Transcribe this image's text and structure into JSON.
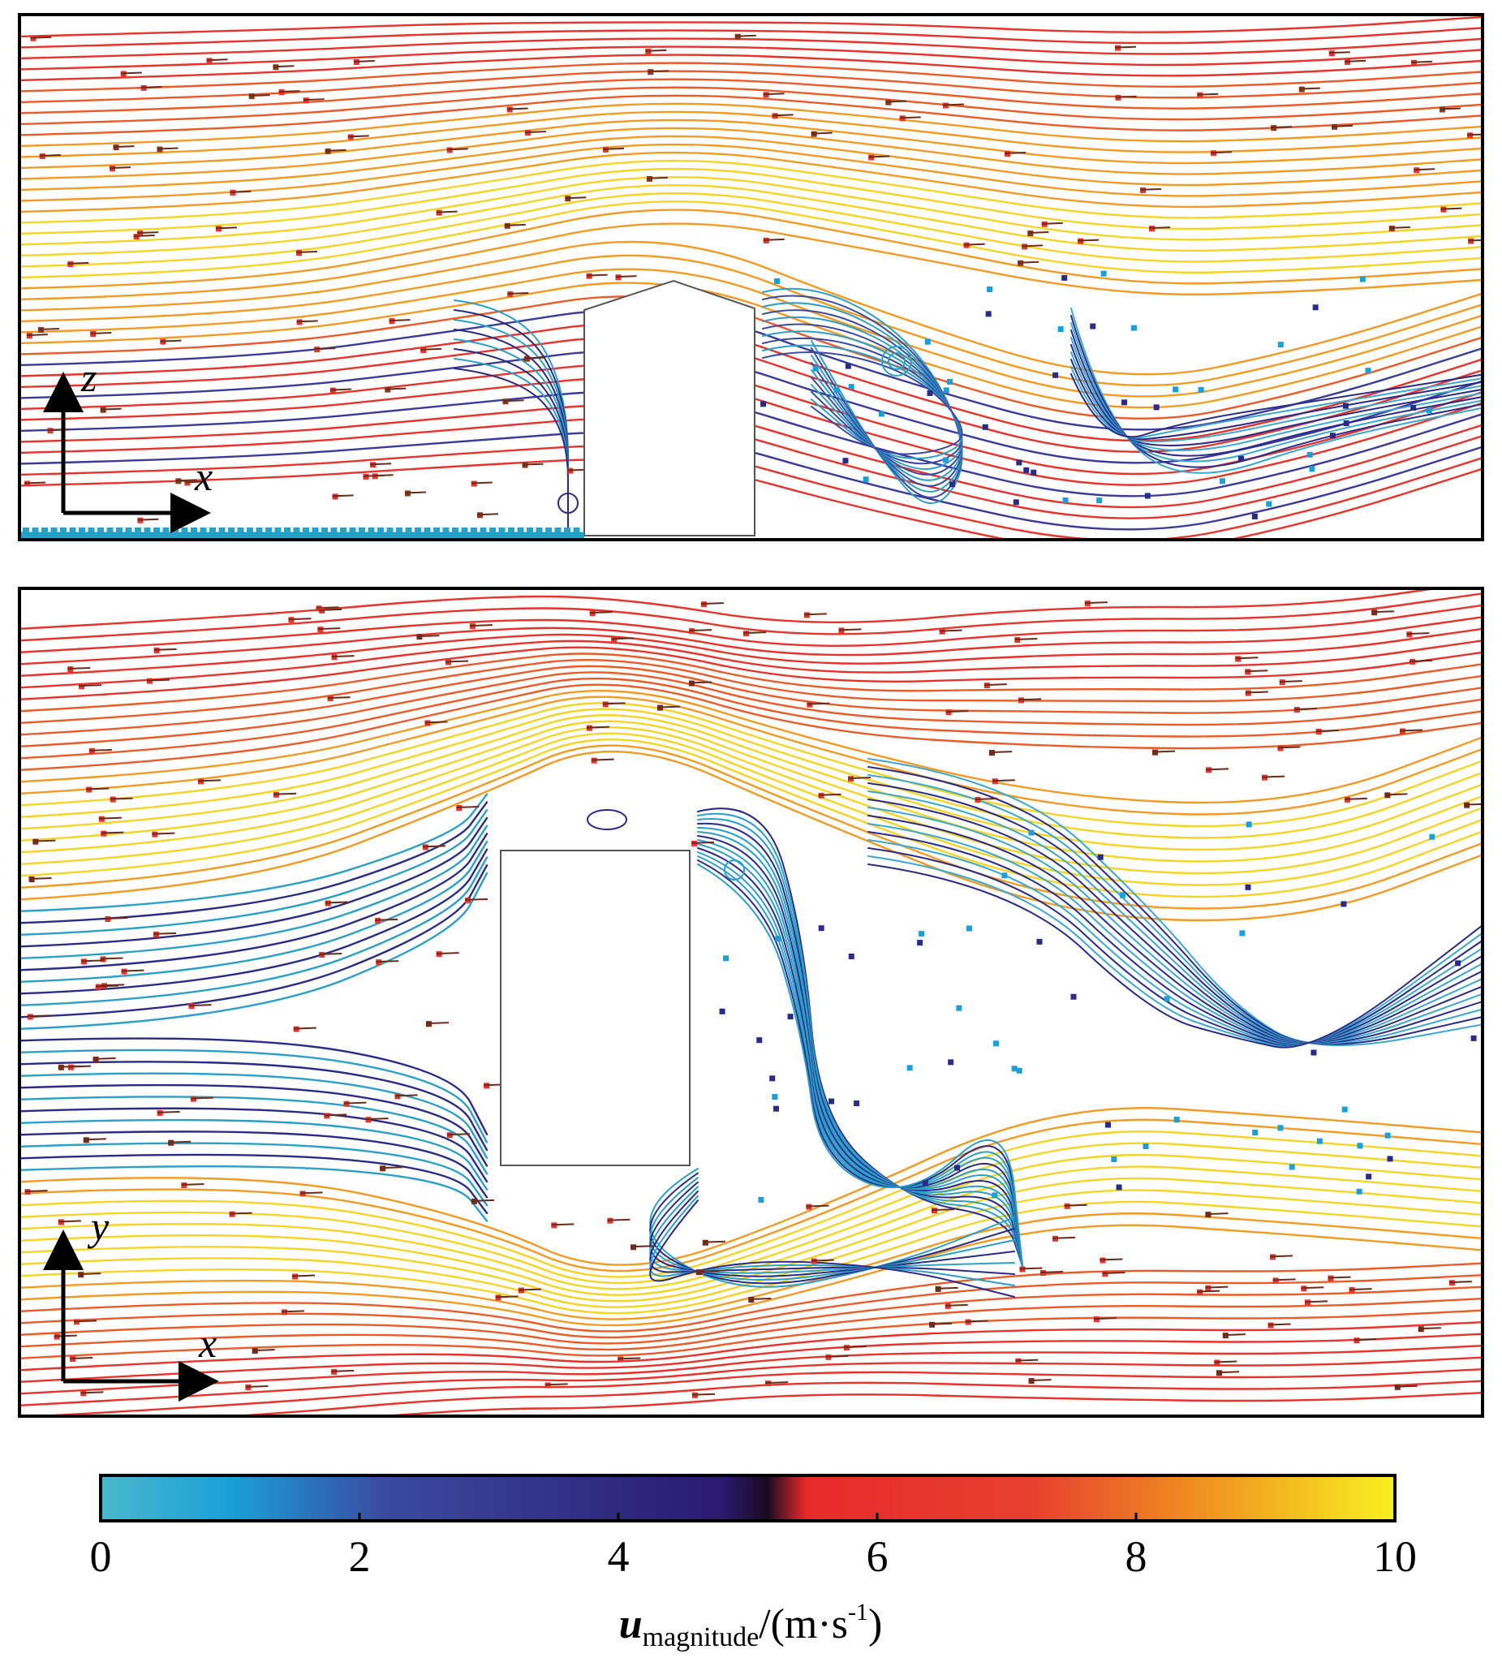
{
  "colors": {
    "stops": [
      "#4ab8cc",
      "#1aa0d8",
      "#3a4aa0",
      "#2a1a70",
      "#e62a2a",
      "#f06a20",
      "#f8e820"
    ],
    "wall": "#2aa0c8",
    "frame": "#000000"
  },
  "top_panel": {
    "axis_vertical": "z",
    "axis_horizontal": "x"
  },
  "bottom_panel": {
    "axis_vertical": "y",
    "axis_horizontal": "x"
  },
  "colorbar": {
    "min": 0,
    "max": 10,
    "ticks": [
      "0",
      "2",
      "4",
      "6",
      "8",
      "10"
    ],
    "label_main": "u",
    "label_sub": "magnitude",
    "label_unit_prefix": "/(m·s",
    "label_unit_sup": "-1",
    "label_unit_suffix": ")"
  }
}
